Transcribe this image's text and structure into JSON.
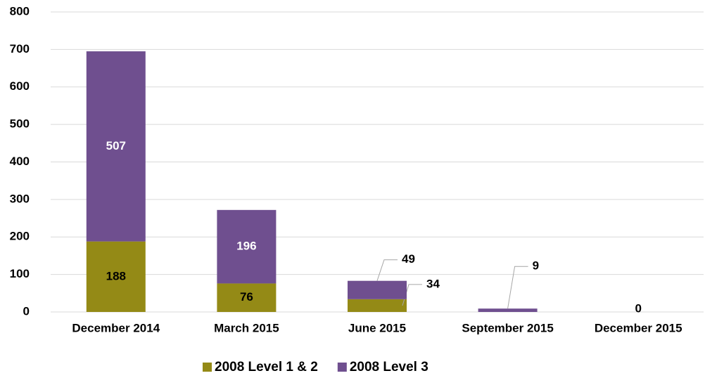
{
  "chart_data": {
    "type": "stacked_bar",
    "categories": [
      "December 2014",
      "March 2015",
      "June 2015",
      "September 2015",
      "December 2015"
    ],
    "series": [
      {
        "name": "2008 Level 1 & 2",
        "color": "#948a16",
        "values": [
          188,
          76,
          34,
          null,
          null
        ]
      },
      {
        "name": "2008 Level 3",
        "color": "#6f4f8f",
        "values": [
          507,
          196,
          49,
          9,
          0
        ]
      }
    ],
    "ylim": [
      0,
      800
    ],
    "yticks": [
      0,
      100,
      200,
      300,
      400,
      500,
      600,
      700,
      800
    ],
    "grid": true,
    "legend": "bottom"
  }
}
